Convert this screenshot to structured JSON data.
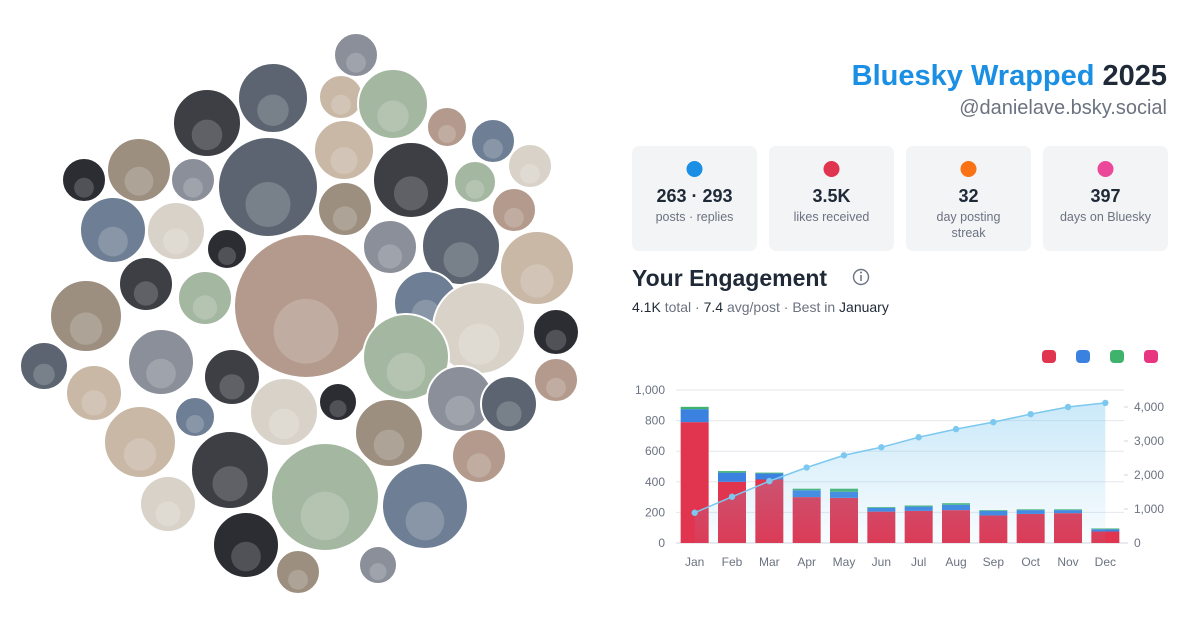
{
  "header": {
    "title": "Bluesky Wrapped",
    "year": "2025",
    "handle": "@danielave.bsky.social"
  },
  "stats": [
    {
      "value": "263 · 293",
      "label": "posts · replies"
    },
    {
      "value": "3.5K",
      "label": "likes received"
    },
    {
      "value": "32",
      "label": "day posting",
      "label2": "streak"
    },
    {
      "value": "397",
      "label": "days on Bluesky"
    }
  ],
  "engagement": {
    "title": "Your Engagement",
    "summary": [
      "4.1K",
      " total · ",
      "7.4",
      " avg/post · Best in ",
      "January"
    ]
  },
  "chart_data": {
    "type": "bar",
    "categories": [
      "Jan",
      "Feb",
      "Mar",
      "Apr",
      "May",
      "Jun",
      "Jul",
      "Aug",
      "Sep",
      "Oct",
      "Nov",
      "Dec"
    ],
    "series": [
      {
        "type": "bar",
        "color": "#e0344f",
        "values": [
          790,
          400,
          415,
          300,
          295,
          205,
          210,
          215,
          180,
          190,
          195,
          75
        ]
      },
      {
        "type": "bar",
        "color": "#3b82e0",
        "values": [
          85,
          60,
          40,
          45,
          40,
          25,
          28,
          35,
          30,
          25,
          20,
          15
        ]
      },
      {
        "type": "bar",
        "color": "#3fb36b",
        "values": [
          15,
          10,
          5,
          10,
          20,
          5,
          7,
          10,
          5,
          5,
          5,
          5
        ]
      },
      {
        "type": "bar",
        "color": "#e8357f",
        "values": [
          0,
          0,
          0,
          0,
          0,
          0,
          0,
          0,
          0,
          0,
          0,
          0
        ]
      },
      {
        "type": "line",
        "axis": "y2",
        "color": "#7cc8ef",
        "values": [
          890,
          1360,
          1820,
          2220,
          2580,
          2815,
          3110,
          3350,
          3555,
          3790,
          4000,
          4120
        ]
      }
    ],
    "ylim": [
      0,
      1000
    ],
    "yticks": [
      0,
      200,
      400,
      600,
      800,
      {
        "value": 1000,
        "label": "1,000"
      }
    ],
    "y2lim": [
      0,
      4500
    ],
    "y2ticks": [
      0,
      {
        "value": 1000,
        "label": "1,000"
      },
      {
        "value": 2000,
        "label": "2,000"
      },
      {
        "value": 3000,
        "label": "3,000"
      },
      {
        "value": 4000,
        "label": "4,000"
      }
    ],
    "grid": true
  }
}
